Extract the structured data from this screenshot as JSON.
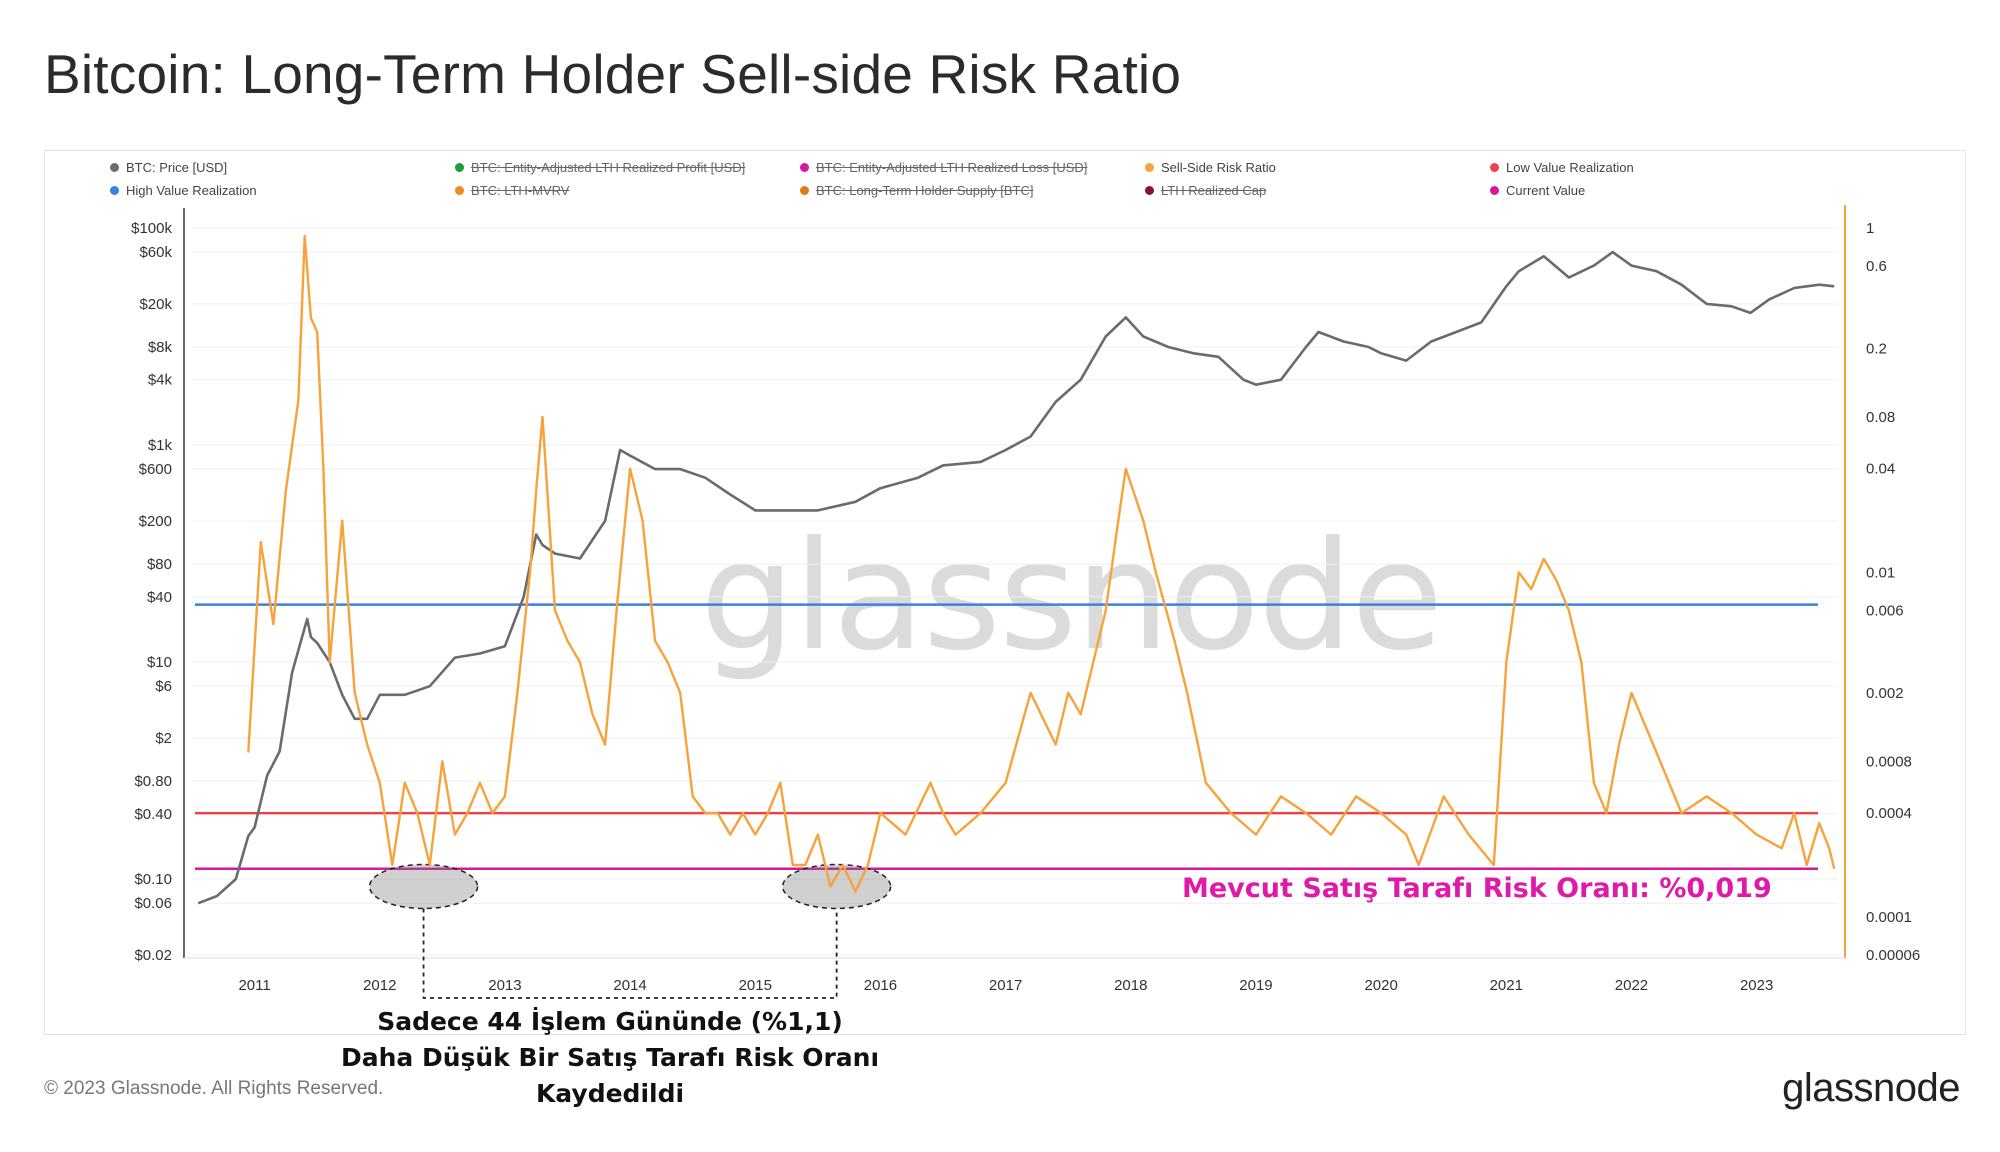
{
  "title": "Bitcoin: Long-Term Holder Sell-side Risk Ratio",
  "legend": [
    {
      "label": "BTC: Price [USD]",
      "color": "#6b6b6b",
      "enabled": true
    },
    {
      "label": "BTC: Entity-Adjusted LTH Realized Profit [USD]",
      "color": "#1f9c3b",
      "enabled": false
    },
    {
      "label": "BTC: Entity-Adjusted LTH Realized Loss [USD]",
      "color": "#d6189a",
      "enabled": false
    },
    {
      "label": "Sell-Side Risk Ratio",
      "color": "#f7a23b",
      "enabled": true
    },
    {
      "label": "Low Value Realization",
      "color": "#e8454a",
      "enabled": true
    },
    {
      "label": "High Value Realization",
      "color": "#3a82e0",
      "enabled": true
    },
    {
      "label": "BTC: LTH-MVRV",
      "color": "#f08a23",
      "enabled": false
    },
    {
      "label": "BTC: Long-Term Holder Supply [BTC]",
      "color": "#e07a17",
      "enabled": false
    },
    {
      "label": "LTH Realized Cap",
      "color": "#8a1040",
      "enabled": false
    },
    {
      "label": "Current Value",
      "color": "#d6189a",
      "enabled": true
    }
  ],
  "watermark": "glassnode",
  "annotation_current": "Mevcut Satış Tarafı Risk Oranı: %0,019",
  "annotation_note_line1": "Sadece 44 İşlem Gününde (%1,1)",
  "annotation_note_line2": "Daha Düşük Bir Satış Tarafı Risk Oranı Kaydedildi",
  "footer": "© 2023 Glassnode. All Rights Reserved.",
  "brand": "glassnode",
  "chart_data": {
    "type": "line",
    "x_range": [
      2010.5,
      2023.65
    ],
    "x_ticks": [
      "2011",
      "2012",
      "2013",
      "2014",
      "2015",
      "2016",
      "2017",
      "2018",
      "2019",
      "2020",
      "2021",
      "2022",
      "2023"
    ],
    "left_axis": {
      "scale": "log",
      "range": [
        0.02,
        100000
      ],
      "tick_labels": [
        "$100k",
        "$60k",
        "$20k",
        "$8k",
        "$4k",
        "$1k",
        "$600",
        "$200",
        "$80",
        "$40",
        "$10",
        "$6",
        "$2",
        "$0.80",
        "$0.40",
        "$0.10",
        "$0.06",
        "$0.02"
      ],
      "tick_values": [
        100000,
        60000,
        20000,
        8000,
        4000,
        1000,
        600,
        200,
        80,
        40,
        10,
        6,
        2,
        0.8,
        0.4,
        0.1,
        0.06,
        0.02
      ]
    },
    "right_axis": {
      "scale": "log",
      "range": [
        6e-05,
        1
      ],
      "tick_labels": [
        "1",
        "0.6",
        "0.2",
        "0.08",
        "0.04",
        "0.01",
        "0.006",
        "0.002",
        "0.0008",
        "0.0004",
        "0.0001",
        "0.00006"
      ],
      "tick_values": [
        1,
        0.6,
        0.2,
        0.08,
        0.04,
        0.01,
        0.006,
        0.002,
        0.0008,
        0.0004,
        0.0001,
        6e-05
      ]
    },
    "series": [
      {
        "name": "BTC: Price [USD]",
        "color": "#6b6b6b",
        "axis": "left",
        "x": [
          2010.55,
          2010.7,
          2010.85,
          2010.95,
          2011.0,
          2011.1,
          2011.2,
          2011.3,
          2011.42,
          2011.45,
          2011.5,
          2011.6,
          2011.7,
          2011.8,
          2011.9,
          2012.0,
          2012.2,
          2012.4,
          2012.6,
          2012.8,
          2013.0,
          2013.15,
          2013.25,
          2013.3,
          2013.4,
          2013.6,
          2013.8,
          2013.92,
          2014.0,
          2014.2,
          2014.4,
          2014.6,
          2014.8,
          2015.0,
          2015.2,
          2015.5,
          2015.8,
          2016.0,
          2016.3,
          2016.5,
          2016.8,
          2017.0,
          2017.2,
          2017.4,
          2017.6,
          2017.8,
          2017.96,
          2018.1,
          2018.3,
          2018.5,
          2018.7,
          2018.9,
          2019.0,
          2019.2,
          2019.4,
          2019.5,
          2019.7,
          2019.9,
          2020.0,
          2020.2,
          2020.4,
          2020.6,
          2020.8,
          2021.0,
          2021.1,
          2021.3,
          2021.5,
          2021.7,
          2021.85,
          2022.0,
          2022.2,
          2022.4,
          2022.6,
          2022.8,
          2022.95,
          2023.1,
          2023.3,
          2023.5,
          2023.62
        ],
        "y": [
          0.06,
          0.07,
          0.1,
          0.25,
          0.3,
          0.9,
          1.5,
          8,
          25,
          17,
          15,
          10,
          5,
          3,
          3,
          5,
          5,
          6,
          11,
          12,
          14,
          40,
          150,
          120,
          100,
          90,
          200,
          900,
          800,
          600,
          600,
          500,
          350,
          250,
          250,
          250,
          300,
          400,
          500,
          650,
          700,
          900,
          1200,
          2500,
          4000,
          10000,
          15000,
          10000,
          8000,
          7000,
          6500,
          4000,
          3600,
          4000,
          8000,
          11000,
          9000,
          8000,
          7000,
          6000,
          9000,
          11000,
          13500,
          29000,
          40000,
          55000,
          35000,
          45000,
          60000,
          45000,
          40000,
          30000,
          20000,
          19000,
          16500,
          22000,
          28000,
          30000,
          29000
        ]
      },
      {
        "name": "Sell-Side Risk Ratio",
        "color": "#f7a23b",
        "axis": "right",
        "x": [
          2010.95,
          2011.05,
          2011.15,
          2011.25,
          2011.35,
          2011.4,
          2011.45,
          2011.5,
          2011.55,
          2011.6,
          2011.7,
          2011.8,
          2011.9,
          2012.0,
          2012.1,
          2012.2,
          2012.3,
          2012.4,
          2012.5,
          2012.6,
          2012.7,
          2012.8,
          2012.9,
          2013.0,
          2013.1,
          2013.2,
          2013.25,
          2013.3,
          2013.4,
          2013.5,
          2013.6,
          2013.7,
          2013.8,
          2013.9,
          2014.0,
          2014.1,
          2014.2,
          2014.3,
          2014.4,
          2014.5,
          2014.6,
          2014.7,
          2014.8,
          2014.9,
          2015.0,
          2015.1,
          2015.2,
          2015.3,
          2015.4,
          2015.5,
          2015.6,
          2015.7,
          2015.8,
          2015.9,
          2016.0,
          2016.2,
          2016.4,
          2016.5,
          2016.6,
          2016.8,
          2017.0,
          2017.2,
          2017.4,
          2017.5,
          2017.6,
          2017.7,
          2017.8,
          2017.9,
          2017.96,
          2018.1,
          2018.2,
          2018.35,
          2018.45,
          2018.6,
          2018.8,
          2019.0,
          2019.2,
          2019.4,
          2019.6,
          2019.8,
          2020.0,
          2020.2,
          2020.3,
          2020.5,
          2020.7,
          2020.9,
          2021.0,
          2021.1,
          2021.2,
          2021.3,
          2021.4,
          2021.5,
          2021.6,
          2021.7,
          2021.8,
          2021.9,
          2022.0,
          2022.2,
          2022.4,
          2022.6,
          2022.8,
          2023.0,
          2023.2,
          2023.3,
          2023.4,
          2023.5,
          2023.58,
          2023.62
        ],
        "y": [
          0.0009,
          0.015,
          0.005,
          0.03,
          0.1,
          0.9,
          0.3,
          0.25,
          0.04,
          0.003,
          0.02,
          0.002,
          0.001,
          0.0006,
          0.0002,
          0.0006,
          0.0004,
          0.0002,
          0.0008,
          0.0003,
          0.0004,
          0.0006,
          0.0004,
          0.0005,
          0.002,
          0.01,
          0.03,
          0.08,
          0.006,
          0.004,
          0.003,
          0.0015,
          0.001,
          0.007,
          0.04,
          0.02,
          0.004,
          0.003,
          0.002,
          0.0005,
          0.0004,
          0.0004,
          0.0003,
          0.0004,
          0.0003,
          0.0004,
          0.0006,
          0.0002,
          0.0002,
          0.0003,
          0.00015,
          0.0002,
          0.00014,
          0.0002,
          0.0004,
          0.0003,
          0.0006,
          0.0004,
          0.0003,
          0.0004,
          0.0006,
          0.002,
          0.001,
          0.002,
          0.0015,
          0.003,
          0.006,
          0.02,
          0.04,
          0.02,
          0.01,
          0.004,
          0.002,
          0.0006,
          0.0004,
          0.0003,
          0.0005,
          0.0004,
          0.0003,
          0.0005,
          0.0004,
          0.0003,
          0.0002,
          0.0005,
          0.0003,
          0.0002,
          0.003,
          0.01,
          0.008,
          0.012,
          0.009,
          0.006,
          0.003,
          0.0006,
          0.0004,
          0.001,
          0.002,
          0.0009,
          0.0004,
          0.0005,
          0.0004,
          0.0003,
          0.00025,
          0.0004,
          0.0002,
          0.00035,
          0.00025,
          0.00019
        ]
      }
    ],
    "reference_lines": [
      {
        "name": "High Value Realization",
        "axis": "right",
        "value": 0.0065,
        "color": "#3a82e0"
      },
      {
        "name": "Low Value Realization",
        "axis": "right",
        "value": 0.0004,
        "color": "#e8454a"
      },
      {
        "name": "Current Value",
        "axis": "right",
        "value": 0.00019,
        "color": "#d6189a"
      }
    ],
    "highlight_years": [
      2012.35,
      2015.65
    ]
  }
}
